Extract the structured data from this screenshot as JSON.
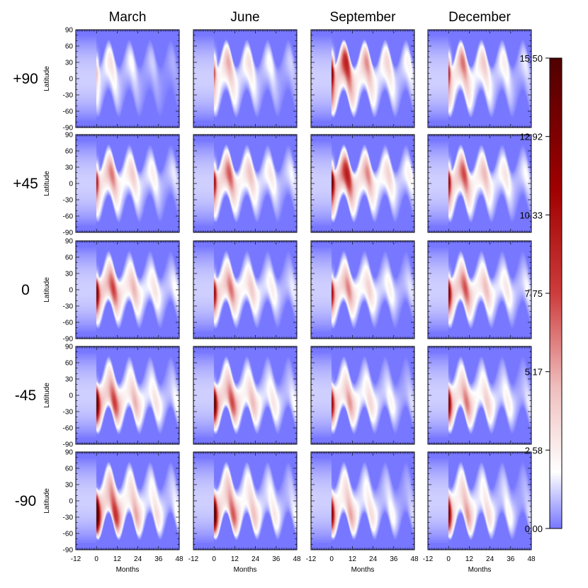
{
  "chart_data": {
    "type": "heatmap",
    "title": "",
    "columns": [
      "March",
      "June",
      "September",
      "December"
    ],
    "rows": [
      "+90",
      "+45",
      "0",
      "-45",
      "-90"
    ],
    "xlabel": "Months",
    "ylabel": "Latitude",
    "x_ticks": [
      -12,
      0,
      12,
      24,
      36,
      48
    ],
    "x_ticks_text": [
      "-12",
      "0",
      "12",
      "24",
      "36",
      "48"
    ],
    "xlim": [
      -12,
      48
    ],
    "y_ticks": [
      90,
      60,
      30,
      0,
      -30,
      -60,
      -90
    ],
    "y_ticks_text": [
      "90",
      "60",
      "30",
      "0",
      "-30",
      "-60",
      "-90"
    ],
    "ylim": [
      -90,
      90
    ],
    "colorbar": {
      "ticks": [
        "0.00",
        "2.58",
        "5.17",
        "7.75",
        "10.33",
        "12.92",
        "15.50"
      ],
      "range": [
        0,
        15.5
      ],
      "colors": [
        "#7777ff",
        "#ffffff",
        "#e8a0a0",
        "#cc3333",
        "#aa0000",
        "#550000"
      ]
    },
    "peak_values": [
      [
        4.5,
        7.5,
        13.5,
        9.5
      ],
      [
        8.0,
        9.0,
        12.0,
        9.5
      ],
      [
        9.5,
        8.0,
        7.5,
        9.0
      ],
      [
        10.5,
        10.0,
        7.5,
        8.5
      ],
      [
        13.5,
        11.5,
        8.5,
        9.0
      ]
    ],
    "source_lat_deg": [
      90,
      45,
      0,
      -45,
      -90
    ]
  }
}
